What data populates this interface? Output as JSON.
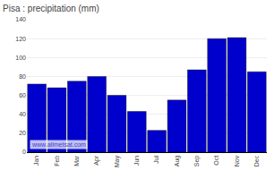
{
  "chart_data": {
    "type": "bar",
    "title": "Pisa : precipitation (mm)",
    "categories": [
      "Jan",
      "Feb",
      "Mar",
      "Apr",
      "May",
      "Jun",
      "Jul",
      "Aug",
      "Sep",
      "Oct",
      "Nov",
      "Dec"
    ],
    "values": [
      72,
      68,
      75,
      80,
      60,
      43,
      23,
      55,
      87,
      120,
      121,
      85
    ],
    "color": "#0000cc",
    "ylim": [
      0,
      140
    ],
    "yticks": [
      0,
      20,
      40,
      60,
      80,
      100,
      120,
      140
    ],
    "grid": true,
    "annotations": [
      "www.allmetsat.com"
    ]
  }
}
